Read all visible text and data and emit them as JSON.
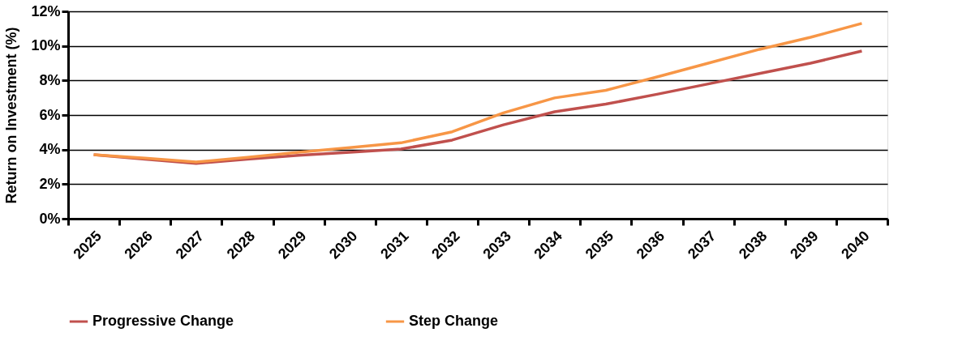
{
  "chart_data": {
    "type": "line",
    "ylabel": "Return on Investment (%)",
    "categories": [
      "2025",
      "2026",
      "2027",
      "2028",
      "2029",
      "2030",
      "2031",
      "2032",
      "2033",
      "2034",
      "2035",
      "2036",
      "2037",
      "2038",
      "2039",
      "2040"
    ],
    "series": [
      {
        "name": "Progressive Change",
        "color": "#c0504d",
        "values": [
          3.7,
          3.45,
          3.2,
          3.45,
          3.67,
          3.84,
          4.03,
          4.55,
          5.43,
          6.19,
          6.63,
          7.2,
          7.8,
          8.4,
          9.0,
          9.7
        ]
      },
      {
        "name": "Step Change",
        "color": "#f79646",
        "values": [
          3.7,
          3.5,
          3.28,
          3.55,
          3.84,
          4.11,
          4.39,
          5.03,
          6.12,
          6.99,
          7.43,
          8.2,
          9.0,
          9.8,
          10.5,
          11.3
        ]
      }
    ],
    "ylim": [
      0,
      12
    ],
    "yticks": [
      {
        "value": 0,
        "label": "0%"
      },
      {
        "value": 2,
        "label": "2%"
      },
      {
        "value": 4,
        "label": "4%"
      },
      {
        "value": 6,
        "label": "6%"
      },
      {
        "value": 8,
        "label": "8%"
      },
      {
        "value": 10,
        "label": "10%"
      },
      {
        "value": 12,
        "label": "12%"
      }
    ],
    "grid": "y",
    "legend": "bottom",
    "marker": "none",
    "line_style": "solid"
  }
}
